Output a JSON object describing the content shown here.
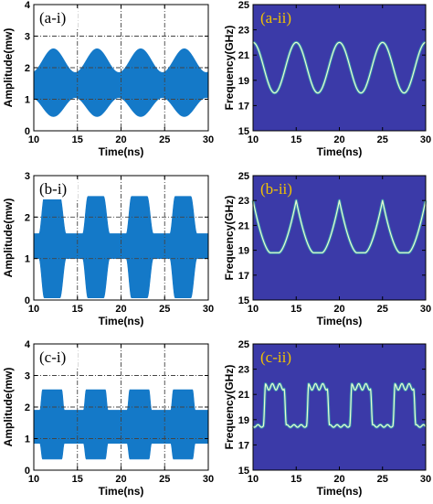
{
  "colors": {
    "waveform": "#1479c8",
    "spectrogram_bg": "#3b3aa8",
    "ridge": "#e8ffd0",
    "ridge_glow": "#38d2b0",
    "grid": "#444444"
  },
  "chart_data": [
    {
      "type": "area",
      "panel": "a-i",
      "label": "(a-i)",
      "xlabel": "Time(ns)",
      "ylabel": "Amplitude(mw)",
      "xlim": [
        10,
        30
      ],
      "ylim": [
        0,
        4
      ],
      "xticks": [
        "10",
        "15",
        "20",
        "25",
        "30"
      ],
      "yticks": [
        "0",
        "1",
        "2",
        "3",
        "4"
      ],
      "grid": true,
      "envelope": {
        "shape": "sine",
        "period_ns": 5,
        "upper_min": 1.85,
        "upper_max": 2.6,
        "lower_min": 0.45,
        "lower_max": 1.05
      }
    },
    {
      "type": "heatmap",
      "panel": "a-ii",
      "label": "(a-ii)",
      "xlabel": "Time(ns)",
      "ylabel": "Frequency(GHz)",
      "xlim": [
        10,
        30
      ],
      "ylim": [
        15,
        25
      ],
      "xticks": [
        "10",
        "15",
        "20",
        "25",
        "30"
      ],
      "yticks": [
        "15",
        "17",
        "19",
        "21",
        "23",
        "25"
      ],
      "ridge": {
        "shape": "sine",
        "period_ns": 5,
        "min_ghz": 18.0,
        "max_ghz": 22.0,
        "peak_time_ns": 20
      }
    },
    {
      "type": "area",
      "panel": "b-i",
      "label": "(b-i)",
      "xlabel": "Time(ns)",
      "ylabel": "Amplitude(mw)",
      "xlim": [
        10,
        30
      ],
      "ylim": [
        0,
        3
      ],
      "xticks": [
        "10",
        "15",
        "20",
        "25",
        "30"
      ],
      "yticks": [
        "0",
        "1",
        "2",
        "3"
      ],
      "grid": true,
      "envelope": {
        "shape": "trapezoid",
        "period_ns": 5,
        "upper_min": 1.6,
        "upper_max": 2.5,
        "lower_min": 0.05,
        "lower_max": 1.0
      }
    },
    {
      "type": "heatmap",
      "panel": "b-ii",
      "label": "(b-ii)",
      "xlabel": "Time(ns)",
      "ylabel": "Frequency(GHz)",
      "xlim": [
        10,
        30
      ],
      "ylim": [
        15,
        25
      ],
      "xticks": [
        "10",
        "15",
        "20",
        "25",
        "30"
      ],
      "yticks": [
        "15",
        "17",
        "19",
        "21",
        "23",
        "25"
      ],
      "ridge": {
        "shape": "dips",
        "period_ns": 5,
        "min_ghz": 18.8,
        "max_ghz": 23.0,
        "peak_time_ns": 15
      }
    },
    {
      "type": "area",
      "panel": "c-i",
      "label": "(c-i)",
      "xlabel": "Time(ns)",
      "ylabel": "Amplitude(mw)",
      "xlim": [
        10,
        30
      ],
      "ylim": [
        0,
        4
      ],
      "xticks": [
        "10",
        "15",
        "20",
        "25",
        "30"
      ],
      "yticks": [
        "0",
        "1",
        "2",
        "3",
        "4"
      ],
      "grid": true,
      "envelope": {
        "shape": "square",
        "period_ns": 5,
        "upper_min": 1.9,
        "upper_max": 2.55,
        "lower_min": 0.35,
        "lower_max": 0.85
      }
    },
    {
      "type": "heatmap",
      "panel": "c-ii",
      "label": "(c-ii)",
      "xlabel": "Time(ns)",
      "ylabel": "Frequency(GHz)",
      "xlim": [
        10,
        30
      ],
      "ylim": [
        15,
        25
      ],
      "xticks": [
        "10",
        "15",
        "20",
        "25",
        "30"
      ],
      "yticks": [
        "15",
        "17",
        "19",
        "21",
        "23",
        "25"
      ],
      "ridge": {
        "shape": "square",
        "period_ns": 5,
        "min_ghz": 18.5,
        "max_ghz": 21.6,
        "peak_time_ns": 12.5
      }
    }
  ]
}
